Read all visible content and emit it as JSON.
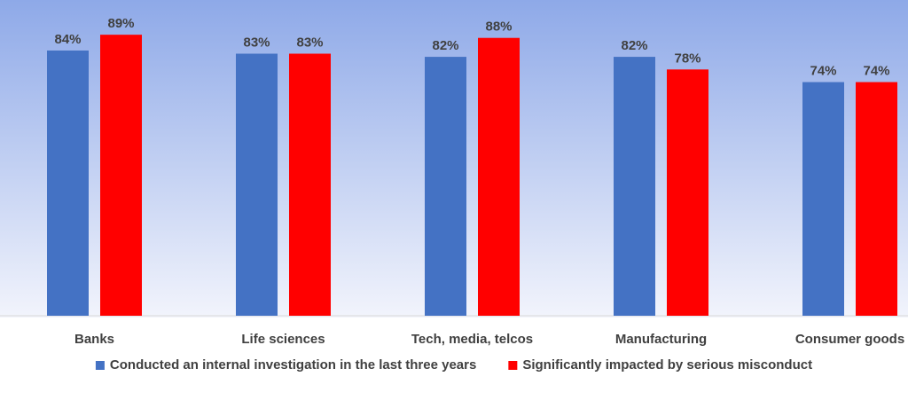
{
  "chart_data": {
    "type": "bar",
    "categories": [
      "Banks",
      "Life sciences",
      "Tech, media, telcos",
      "Manufacturing",
      "Consumer goods"
    ],
    "series": [
      {
        "name": "Conducted an internal investigation in the last three years",
        "values": [
          84,
          83,
          82,
          82,
          74
        ],
        "color": "#4472C4"
      },
      {
        "name": "Significantly impacted by serious misconduct",
        "values": [
          89,
          83,
          88,
          78,
          74
        ],
        "color": "#FF0000"
      }
    ],
    "value_suffix": "%",
    "title": "",
    "xlabel": "",
    "ylabel": "",
    "ylim": [
      0,
      100
    ],
    "grid": false,
    "legend_position": "bottom",
    "plot_background": {
      "top": "#8EA9E8",
      "bottom": "#F2F4FC"
    }
  }
}
